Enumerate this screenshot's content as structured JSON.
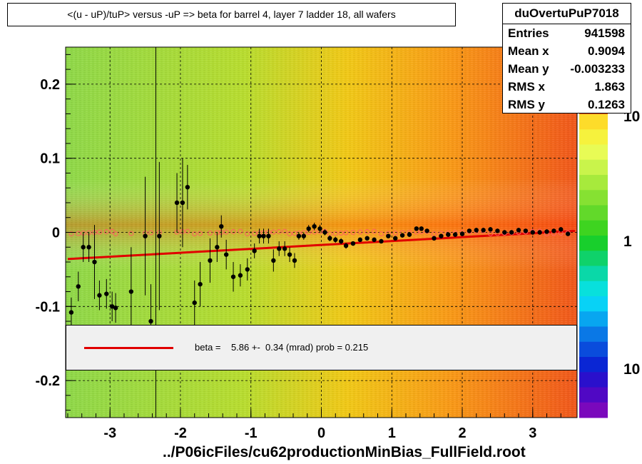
{
  "title": "<(u - uP)/tuP> versus  -uP => beta for barrel 4, layer 7 ladder 18, all wafers",
  "footer": "../P06icFiles/cu62productionMinBias_FullField.root",
  "stats": {
    "name": "duOvertuPuP7018",
    "rows": [
      {
        "label": "Entries",
        "value": "941598"
      },
      {
        "label": "Mean x",
        "value": "0.9094"
      },
      {
        "label": "Mean y",
        "value": "-0.003233"
      },
      {
        "label": "RMS x",
        "value": "1.863"
      },
      {
        "label": "RMS y",
        "value": "0.1263"
      }
    ]
  },
  "legend": {
    "text": "beta =    5.86 +-  0.34 (mrad) prob = 0.215"
  },
  "colors": {
    "fit_line": "#e00000",
    "profile_points": "#000000",
    "open_markers": "#ff6060"
  },
  "chart_data": {
    "type": "heatmap",
    "x_range": [
      -3.63,
      3.63
    ],
    "y_range": [
      -0.25,
      0.25
    ],
    "x_ticks": [
      "-3",
      "-2",
      "-1",
      "0",
      "1",
      "2",
      "3"
    ],
    "x_tick_values": [
      -3,
      -2,
      -1,
      0,
      1,
      2,
      3
    ],
    "y_ticks": [
      "0.2",
      "0.1",
      "0",
      "-0.1",
      "-0.2"
    ],
    "y_tick_values": [
      0.2,
      0.1,
      0,
      -0.1,
      -0.2
    ],
    "grid": true,
    "z_scale": "log",
    "color_scale_labels": [
      "10",
      "1",
      "10"
    ],
    "fit_line": {
      "x": [
        -3.6,
        3.6
      ],
      "y": [
        -0.036,
        0.002
      ]
    },
    "profile": {
      "x": [
        -3.55,
        -3.45,
        -3.38,
        -3.3,
        -3.22,
        -3.15,
        -3.05,
        -2.97,
        -2.92,
        -2.7,
        -2.5,
        -2.42,
        -2.3,
        -2.05,
        -1.97,
        -1.9,
        -1.8,
        -1.72,
        -1.58,
        -1.48,
        -1.42,
        -1.35,
        -1.25,
        -1.15,
        -1.05,
        -0.95,
        -0.88,
        -0.82,
        -0.75,
        -0.68,
        -0.6,
        -0.52,
        -0.45,
        -0.38,
        -0.32,
        -0.25,
        -0.18,
        -0.1,
        -0.02,
        0.05,
        0.12,
        0.2,
        0.28,
        0.35,
        0.45,
        0.55,
        0.65,
        0.75,
        0.85,
        0.95,
        1.05,
        1.15,
        1.25,
        1.35,
        1.42,
        1.5,
        1.6,
        1.7,
        1.8,
        1.9,
        2.0,
        2.1,
        2.2,
        2.3,
        2.4,
        2.5,
        2.6,
        2.7,
        2.8,
        2.9,
        3.0,
        3.1,
        3.2,
        3.3,
        3.4,
        3.5
      ],
      "y": [
        -0.108,
        -0.073,
        -0.02,
        -0.02,
        -0.04,
        -0.085,
        -0.083,
        -0.1,
        -0.102,
        -0.08,
        -0.005,
        -0.12,
        -0.005,
        0.04,
        0.04,
        0.061,
        -0.095,
        -0.07,
        -0.038,
        -0.02,
        0.008,
        -0.03,
        -0.06,
        -0.058,
        -0.05,
        -0.025,
        -0.005,
        -0.005,
        -0.005,
        -0.038,
        -0.022,
        -0.022,
        -0.03,
        -0.038,
        -0.005,
        -0.005,
        0.005,
        0.008,
        0.005,
        0.0,
        -0.008,
        -0.01,
        -0.012,
        -0.018,
        -0.015,
        -0.01,
        -0.008,
        -0.01,
        -0.012,
        -0.005,
        -0.008,
        -0.004,
        -0.003,
        0.005,
        0.005,
        0.002,
        -0.008,
        -0.005,
        -0.003,
        -0.003,
        -0.002,
        0.002,
        0.003,
        0.003,
        0.004,
        0.002,
        0.0,
        0.0,
        0.003,
        0.002,
        0.0,
        0.0,
        0.001,
        0.002,
        0.004,
        -0.002
      ],
      "yerr": [
        0.02,
        0.02,
        0.02,
        0.02,
        0.05,
        0.02,
        0.02,
        0.02,
        0.02,
        0.06,
        0.08,
        0.05,
        0.1,
        0.04,
        0.06,
        0.03,
        0.03,
        0.03,
        0.03,
        0.02,
        0.015,
        0.02,
        0.02,
        0.015,
        0.015,
        0.01,
        0.01,
        0.01,
        0.01,
        0.015,
        0.01,
        0.01,
        0.01,
        0.01,
        0.005,
        0.005,
        0.005,
        0.005,
        0.005,
        0.004,
        0.004,
        0.004,
        0.004,
        0.004,
        0.003,
        0.003,
        0.003,
        0.003,
        0.003,
        0.003,
        0.003,
        0.003,
        0.003,
        0.003,
        0.003,
        0.003,
        0.003,
        0.003,
        0.003,
        0.003,
        0.003,
        0.003,
        0.003,
        0.003,
        0.003,
        0.003,
        0.003,
        0.003,
        0.003,
        0.003,
        0.003,
        0.003,
        0.003,
        0.003,
        0.003,
        0.003
      ]
    }
  }
}
